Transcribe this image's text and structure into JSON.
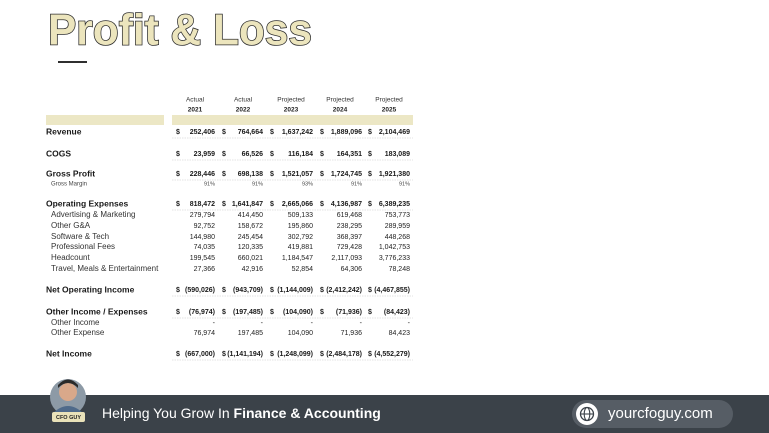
{
  "header": {
    "title": "Profit & Loss"
  },
  "table": {
    "columns": [
      {
        "status": "Actual",
        "year": "2021"
      },
      {
        "status": "Actual",
        "year": "2022"
      },
      {
        "status": "Projected",
        "year": "2023"
      },
      {
        "status": "Projected",
        "year": "2024"
      },
      {
        "status": "Projected",
        "year": "2025"
      }
    ],
    "rows": [
      {
        "label": "Revenue",
        "currency": "$",
        "values": [
          "252,406",
          "764,664",
          "1,637,242",
          "1,889,096",
          "2,104,469"
        ]
      },
      {
        "label": "COGS",
        "currency": "$",
        "values": [
          "23,959",
          "66,526",
          "116,184",
          "164,351",
          "183,089"
        ]
      },
      {
        "label": "Gross Profit",
        "currency": "$",
        "values": [
          "228,446",
          "698,138",
          "1,521,057",
          "1,724,745",
          "1,921,380"
        ]
      },
      {
        "label": "Gross Margin",
        "values": [
          "91%",
          "91%",
          "93%",
          "91%",
          "91%"
        ]
      },
      {
        "label": "Operating Expenses",
        "currency": "$",
        "values": [
          "818,472",
          "1,641,847",
          "2,665,066",
          "4,136,987",
          "6,389,235"
        ]
      },
      {
        "label": "Advertising & Marketing",
        "values": [
          "279,794",
          "414,450",
          "509,133",
          "619,468",
          "753,773"
        ]
      },
      {
        "label": "Other G&A",
        "values": [
          "92,752",
          "158,672",
          "195,860",
          "238,295",
          "289,959"
        ]
      },
      {
        "label": "Software & Tech",
        "values": [
          "144,980",
          "245,454",
          "302,792",
          "368,397",
          "448,268"
        ]
      },
      {
        "label": "Professional Fees",
        "values": [
          "74,035",
          "120,335",
          "419,881",
          "729,428",
          "1,042,753"
        ]
      },
      {
        "label": "Headcount",
        "values": [
          "199,545",
          "660,021",
          "1,184,547",
          "2,117,093",
          "3,776,233"
        ]
      },
      {
        "label": "Travel, Meals & Entertainment",
        "values": [
          "27,366",
          "42,916",
          "52,854",
          "64,306",
          "78,248"
        ]
      },
      {
        "label": "Net Operating Income",
        "currency": "$",
        "values": [
          "(590,026)",
          "(943,709)",
          "(1,144,009)",
          "(2,412,242)",
          "(4,467,855)"
        ]
      },
      {
        "label": "Other Income / Expenses",
        "currency": "$",
        "values": [
          "(76,974)",
          "(197,485)",
          "(104,090)",
          "(71,936)",
          "(84,423)"
        ]
      },
      {
        "label": "Other Income",
        "values": [
          "-",
          "-",
          "-",
          "-",
          "-"
        ]
      },
      {
        "label": "Other Expense",
        "values": [
          "76,974",
          "197,485",
          "104,090",
          "71,936",
          "84,423"
        ]
      },
      {
        "label": "Net Income",
        "currency": "$",
        "values": [
          "(667,000)",
          "(1,141,194)",
          "(1,248,099)",
          "(2,484,178)",
          "(4,552,279)"
        ]
      }
    ]
  },
  "footer": {
    "badge": "CFO GUY",
    "tagline_prefix": "Helping You Grow In ",
    "tagline_emphasis": "Finance & Accounting",
    "website": "yourcfoguy.com"
  }
}
